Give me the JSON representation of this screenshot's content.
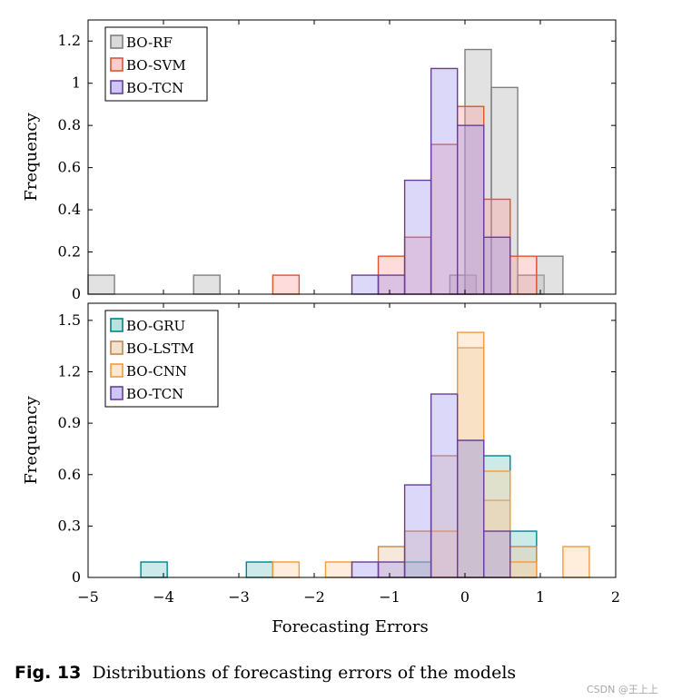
{
  "chart_data": {
    "type": "histogram",
    "xlabel": "Forecasting Errors",
    "xlim": [
      -5,
      2
    ],
    "xticks": [
      -5,
      -4,
      -3,
      -2,
      -1,
      0,
      1,
      2
    ],
    "xtick_labels": [
      "−5",
      "−4",
      "−3",
      "−2",
      "−1",
      "0",
      "1",
      "2"
    ],
    "bin_width": 0.35,
    "panels": [
      {
        "id": "top",
        "ylabel": "Frequency",
        "ylim": [
          0,
          1.3
        ],
        "yticks": [
          0,
          0.2,
          0.4,
          0.6,
          0.8,
          1,
          1.2
        ],
        "ytick_labels": [
          "0",
          "0.2",
          "0.4",
          "0.6",
          "0.8",
          "1",
          "1.2"
        ],
        "legend_position": "top-left",
        "series": [
          {
            "name": "BO-RF",
            "fill": "#bfbfbf",
            "stroke": "#7f7f7f",
            "fill_opacity": 0.45,
            "bins": [
              [
                -5.0,
                0.09
              ],
              [
                -3.6,
                0.09
              ],
              [
                -0.2,
                0.09
              ],
              [
                0.0,
                1.16
              ],
              [
                0.35,
                0.98
              ],
              [
                0.7,
                0.09
              ],
              [
                0.95,
                0.18
              ]
            ]
          },
          {
            "name": "BO-SVM",
            "fill": "#fb9a99",
            "stroke": "#e0542f",
            "fill_opacity": 0.35,
            "bins": [
              [
                -2.55,
                0.09
              ],
              [
                -1.15,
                0.18
              ],
              [
                -0.8,
                0.27
              ],
              [
                -0.45,
                0.71
              ],
              [
                -0.1,
                0.89
              ],
              [
                0.25,
                0.45
              ],
              [
                0.6,
                0.18
              ]
            ]
          },
          {
            "name": "BO-TCN",
            "fill": "#9a90f0",
            "stroke": "#6a3d9a",
            "fill_opacity": 0.35,
            "bins": [
              [
                -1.5,
                0.09
              ],
              [
                -1.15,
                0.09
              ],
              [
                -0.8,
                0.54
              ],
              [
                -0.45,
                1.07
              ],
              [
                -0.1,
                0.8
              ],
              [
                0.25,
                0.27
              ]
            ]
          }
        ]
      },
      {
        "id": "bottom",
        "ylabel": "Frequency",
        "ylim": [
          0,
          1.6
        ],
        "yticks": [
          0,
          0.3,
          0.6,
          0.9,
          1.2,
          1.5
        ],
        "ytick_labels": [
          "0",
          "0.3",
          "0.6",
          "0.9",
          "1.2",
          "1.5"
        ],
        "legend_position": "top-left",
        "series": [
          {
            "name": "BO-GRU",
            "fill": "#80cbc4",
            "stroke": "#00838f",
            "fill_opacity": 0.4,
            "bins": [
              [
                -4.3,
                0.09
              ],
              [
                -2.9,
                0.09
              ],
              [
                -0.8,
                0.09
              ],
              [
                -0.1,
                0.8
              ],
              [
                0.25,
                0.71
              ],
              [
                0.6,
                0.27
              ]
            ]
          },
          {
            "name": "BO-LSTM",
            "fill": "#e9c9a4",
            "stroke": "#c08850",
            "fill_opacity": 0.4,
            "bins": [
              [
                -1.15,
                0.18
              ],
              [
                -0.8,
                0.27
              ],
              [
                -0.45,
                0.71
              ],
              [
                -0.1,
                1.34
              ],
              [
                0.25,
                0.45
              ],
              [
                0.6,
                0.18
              ]
            ]
          },
          {
            "name": "BO-CNN",
            "fill": "#ffd5a8",
            "stroke": "#f39a3a",
            "fill_opacity": 0.4,
            "bins": [
              [
                -2.55,
                0.09
              ],
              [
                -1.85,
                0.09
              ],
              [
                -0.45,
                0.27
              ],
              [
                -0.1,
                1.43
              ],
              [
                0.25,
                0.62
              ],
              [
                0.6,
                0.09
              ],
              [
                1.3,
                0.18
              ]
            ]
          },
          {
            "name": "BO-TCN",
            "fill": "#9a90f0",
            "stroke": "#6a3d9a",
            "fill_opacity": 0.35,
            "bins": [
              [
                -1.5,
                0.09
              ],
              [
                -1.15,
                0.09
              ],
              [
                -0.8,
                0.54
              ],
              [
                -0.45,
                1.07
              ],
              [
                -0.1,
                0.8
              ],
              [
                0.25,
                0.27
              ]
            ]
          }
        ]
      }
    ]
  },
  "caption": {
    "label": "Fig. 13",
    "text": "Distributions of forecasting errors of the models"
  },
  "watermark": "CSDN @王上上"
}
